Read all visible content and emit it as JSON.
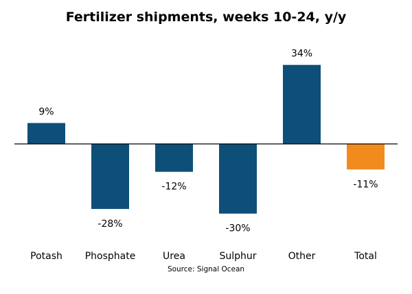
{
  "chart_data": {
    "type": "bar",
    "title": "Fertilizer shipments, weeks 10-24, y/y",
    "source": "Source: Signal Ocean",
    "categories": [
      "Potash",
      "Phosphate",
      "Urea",
      "Sulphur",
      "Other",
      "Total"
    ],
    "values": [
      9,
      -28,
      -12,
      -30,
      34,
      -11
    ],
    "value_labels": [
      "9%",
      "-28%",
      "-12%",
      "-30%",
      "34%",
      "-11%"
    ],
    "colors": [
      "#0d4f78",
      "#0d4f78",
      "#0d4f78",
      "#0d4f78",
      "#0d4f78",
      "#f28b1e"
    ],
    "ylim": [
      -40,
      40
    ],
    "grid": false,
    "legend": "none",
    "xlabel": "",
    "ylabel": ""
  }
}
